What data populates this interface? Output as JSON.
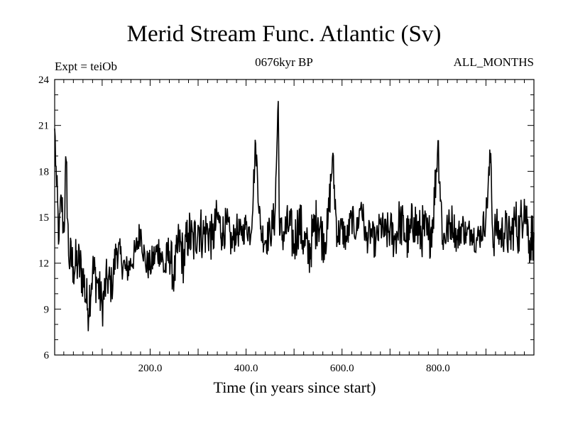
{
  "chart_data": {
    "type": "line",
    "title": "Merid Stream Func. Atlantic (Sv)",
    "subtitle": "0676kyr BP",
    "left_label": "Expt = teiOb",
    "right_label": "ALL_MONTHS",
    "xlabel": "Time (in years since start)",
    "ylabel": "",
    "xlim": [
      1,
      1000
    ],
    "ylim": [
      6,
      24
    ],
    "xticks": [
      200,
      400,
      600,
      800
    ],
    "xtick_labels": [
      "200.0",
      "400.0",
      "600.0",
      "800.0"
    ],
    "yticks": [
      6,
      9,
      12,
      15,
      18,
      21,
      24
    ],
    "ytick_labels": [
      "6",
      "9",
      "12",
      "15",
      "18",
      "21",
      "24"
    ],
    "series": [
      {
        "name": "Merid Stream Func. Atlantic",
        "x": [
          1,
          5,
          10,
          15,
          20,
          25,
          30,
          40,
          50,
          60,
          70,
          80,
          90,
          100,
          110,
          120,
          130,
          140,
          150,
          160,
          170,
          180,
          190,
          200,
          210,
          220,
          230,
          240,
          250,
          260,
          270,
          280,
          290,
          300,
          310,
          320,
          330,
          340,
          350,
          360,
          370,
          380,
          390,
          400,
          410,
          420,
          430,
          440,
          450,
          460,
          467,
          470,
          480,
          490,
          500,
          510,
          520,
          530,
          540,
          550,
          560,
          570,
          580,
          590,
          600,
          610,
          620,
          630,
          640,
          650,
          660,
          670,
          680,
          690,
          700,
          710,
          720,
          730,
          740,
          750,
          760,
          770,
          780,
          790,
          800,
          810,
          820,
          830,
          840,
          850,
          860,
          870,
          880,
          890,
          900,
          910,
          915,
          920,
          930,
          940,
          950,
          960,
          970,
          980,
          990,
          1000
        ],
        "values": [
          20.8,
          17.0,
          13.5,
          16.3,
          14.0,
          18.7,
          12.5,
          11.8,
          12.0,
          11.2,
          9.0,
          11.5,
          10.8,
          9.2,
          11.0,
          10.5,
          13.0,
          12.2,
          11.5,
          12.0,
          12.8,
          14.2,
          12.0,
          11.8,
          12.5,
          13.0,
          11.5,
          12.8,
          11.0,
          13.5,
          12.2,
          14.0,
          13.2,
          14.5,
          13.8,
          14.2,
          13.5,
          15.0,
          14.0,
          14.5,
          13.2,
          14.2,
          13.8,
          14.5,
          13.9,
          19.8,
          14.2,
          13.5,
          14.0,
          15.0,
          22.6,
          13.8,
          14.0,
          14.5,
          13.2,
          14.8,
          13.5,
          12.5,
          14.0,
          15.0,
          13.5,
          14.2,
          18.9,
          13.8,
          14.2,
          13.5,
          15.0,
          14.0,
          16.0,
          13.5,
          14.0,
          13.2,
          14.5,
          13.8,
          14.2,
          13.5,
          14.8,
          14.0,
          13.5,
          15.0,
          13.8,
          14.2,
          13.5,
          15.0,
          20.0,
          13.5,
          14.2,
          14.8,
          13.5,
          14.5,
          13.8,
          14.2,
          13.5,
          14.0,
          15.0,
          19.2,
          13.0,
          14.5,
          13.8,
          14.2,
          13.5,
          14.8,
          14.0,
          16.2,
          13.5,
          14.0
        ]
      }
    ]
  }
}
